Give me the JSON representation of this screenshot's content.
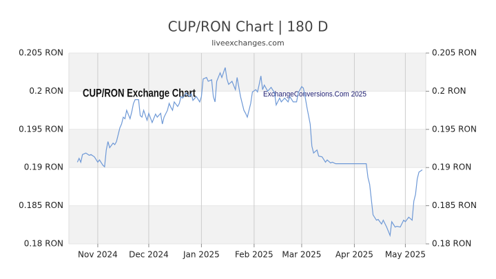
{
  "chart_data": {
    "type": "line",
    "title": "CUP/RON Chart | 180 D",
    "subtitle": "liveexchanges.com",
    "annotations": [
      "CUP/RON Exchange Chart",
      "ExchangeConversions.Com 2025"
    ],
    "color": "#6d98d6",
    "band_color": "#f2f2f2",
    "x": [
      0,
      1,
      2,
      3,
      5,
      7,
      8,
      10,
      12,
      13,
      15,
      16,
      17,
      18,
      19,
      21,
      22,
      23,
      25,
      26,
      27,
      28,
      29,
      31,
      32,
      33,
      34,
      36,
      37,
      38,
      39,
      41,
      42,
      44,
      46,
      47,
      49,
      50,
      51,
      53,
      54,
      55,
      56,
      57,
      59,
      60,
      61,
      62,
      64,
      65,
      66,
      67,
      68,
      70,
      72,
      73,
      74,
      76,
      77,
      79,
      80,
      81,
      82,
      84,
      85,
      87,
      88,
      89,
      91,
      93,
      94,
      96,
      98,
      99,
      100,
      102,
      103,
      105,
      106,
      107,
      108,
      109,
      110,
      111,
      112,
      114,
      116,
      117,
      119,
      120,
      122,
      124,
      125,
      127,
      129,
      130,
      132,
      133,
      134,
      135,
      137,
      138,
      139,
      141,
      142,
      144,
      146,
      147,
      149,
      150,
      152,
      154,
      170,
      171,
      172,
      174,
      176,
      177,
      179,
      180,
      182,
      184,
      185,
      187,
      188,
      190,
      192,
      193,
      195,
      197,
      198,
      199,
      200,
      201,
      203
    ],
    "values": [
      0.1907,
      0.1912,
      0.1907,
      0.1917,
      0.1919,
      0.1916,
      0.1917,
      0.1914,
      0.1907,
      0.191,
      0.1903,
      0.1901,
      0.1923,
      0.1934,
      0.1926,
      0.1932,
      0.193,
      0.1934,
      0.1952,
      0.1957,
      0.1966,
      0.1964,
      0.1975,
      0.1964,
      0.1973,
      0.1984,
      0.1989,
      0.1989,
      0.1968,
      0.1966,
      0.1975,
      0.1962,
      0.1971,
      0.1959,
      0.197,
      0.1966,
      0.1971,
      0.1957,
      0.1966,
      0.1975,
      0.1984,
      0.1979,
      0.1975,
      0.1986,
      0.198,
      0.1984,
      0.1993,
      0.1991,
      0.1998,
      0.1995,
      0.1993,
      0.1997,
      0.1988,
      0.1993,
      0.1986,
      0.1993,
      0.2016,
      0.2018,
      0.2013,
      0.2015,
      0.1993,
      0.1986,
      0.2013,
      0.2024,
      0.2018,
      0.2031,
      0.2016,
      0.2009,
      0.2013,
      0.2002,
      0.2018,
      0.1993,
      0.1975,
      0.1971,
      0.1966,
      0.1984,
      0.1999,
      0.2002,
      0.1999,
      0.2009,
      0.202,
      0.2002,
      0.2008,
      0.2004,
      0.2,
      0.2005,
      0.1998,
      0.1982,
      0.1991,
      0.1986,
      0.1991,
      0.1986,
      0.1993,
      0.1986,
      0.1986,
      0.1998,
      0.2006,
      0.2004,
      0.1993,
      0.198,
      0.1957,
      0.1928,
      0.1919,
      0.1923,
      0.1915,
      0.1914,
      0.1907,
      0.191,
      0.1906,
      0.1907,
      0.1905,
      0.1905,
      0.1905,
      0.1887,
      0.1878,
      0.1838,
      0.1831,
      0.1832,
      0.1826,
      0.1831,
      0.1822,
      0.1811,
      0.1829,
      0.1822,
      0.1823,
      0.1822,
      0.1831,
      0.1829,
      0.1835,
      0.1831,
      0.1856,
      0.1865,
      0.1885,
      0.1894,
      0.1897
    ],
    "xlim": [
      -5,
      205
    ],
    "xticks": [
      {
        "value": 12,
        "label": "Nov 2024"
      },
      {
        "value": 42,
        "label": "Dec 2024"
      },
      {
        "value": 73,
        "label": "Jan 2025"
      },
      {
        "value": 104,
        "label": "Feb 2025"
      },
      {
        "value": 132,
        "label": "Mar 2025"
      },
      {
        "value": 163,
        "label": "Apr 2025"
      },
      {
        "value": 193,
        "label": "May 2025"
      }
    ],
    "ylim": [
      0.18,
      0.205
    ],
    "yticks": [
      {
        "value": 0.18,
        "label": "0.18 RON"
      },
      {
        "value": 0.185,
        "label": "0.185 RON"
      },
      {
        "value": 0.19,
        "label": "0.19 RON"
      },
      {
        "value": 0.195,
        "label": "0.195 RON"
      },
      {
        "value": 0.2,
        "label": "0.2 RON"
      },
      {
        "value": 0.205,
        "label": "0.205 RON"
      }
    ],
    "y2lim": [
      0.18,
      0.205
    ],
    "y2ticks": [
      {
        "value": 0.18,
        "label": "0.18 RON"
      },
      {
        "value": 0.185,
        "label": "0.185 RON"
      },
      {
        "value": 0.19,
        "label": "0.19 RON"
      },
      {
        "value": 0.195,
        "label": "0.195 RON"
      },
      {
        "value": 0.2,
        "label": "0.2 RON"
      },
      {
        "value": 0.205,
        "label": "0.205 RON"
      }
    ]
  }
}
